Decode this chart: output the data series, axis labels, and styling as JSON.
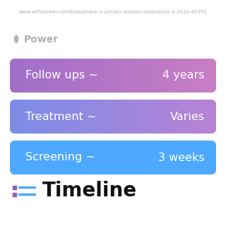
{
  "title": "Timeline",
  "background_color": "#ffffff",
  "title_fontsize": 20,
  "title_color": "#111111",
  "icon_color_dot": "#9b59b6",
  "icon_color_line": "#4da6ff",
  "rows": [
    {
      "label": "Screening ~",
      "value": "3 weeks",
      "color_left": "#4da8ff",
      "color_right": "#4da8ff"
    },
    {
      "label": "Treatment ~",
      "value": "Varies",
      "color_left": "#7b8de8",
      "color_right": "#b882d4"
    },
    {
      "label": "Follow ups ~",
      "value": "4 years",
      "color_left": "#a06ec8",
      "color_right": "#c87ec4"
    }
  ],
  "row_text_color": "#ffffff",
  "row_label_fontsize": 11.5,
  "row_value_fontsize": 11.5,
  "power_text": "Power",
  "power_color": "#b0b0b0",
  "url_text": "www.withpower.com/trial/phase-3-urinary-bladder-neoplasms-9-2020-40351",
  "url_color": "#b0b0b0",
  "url_fontsize": 5.0,
  "power_fontsize": 10
}
